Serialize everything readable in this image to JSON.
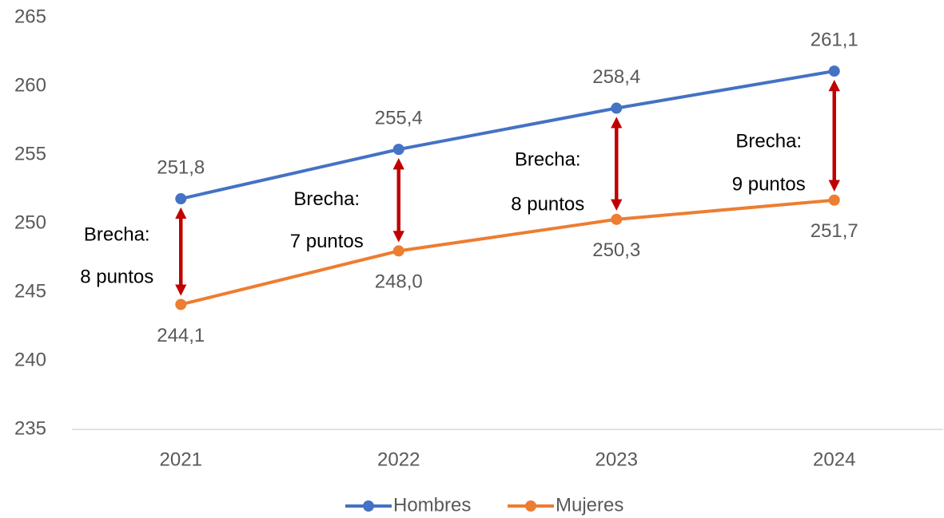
{
  "chart_data": {
    "type": "line",
    "categories": [
      "2021",
      "2022",
      "2023",
      "2024"
    ],
    "series": [
      {
        "name": "Hombres",
        "color": "#4472c4",
        "values": [
          251.8,
          255.4,
          258.4,
          261.1
        ],
        "value_labels": [
          "251,8",
          "255,4",
          "258,4",
          "261,1"
        ]
      },
      {
        "name": "Mujeres",
        "color": "#ed7d31",
        "values": [
          244.1,
          248.0,
          250.3,
          251.7
        ],
        "value_labels": [
          "244,1",
          "248,0",
          "250,3",
          "251,7"
        ]
      }
    ],
    "ylim": [
      235,
      265
    ],
    "yticks": [
      235,
      240,
      245,
      250,
      255,
      260,
      265
    ],
    "annotations": [
      {
        "line1": "Brecha:",
        "line2": "8 puntos"
      },
      {
        "line1": "Brecha:",
        "line2": "7 puntos"
      },
      {
        "line1": "Brecha:",
        "line2": "8 puntos"
      },
      {
        "line1": "Brecha:",
        "line2": "9 puntos"
      }
    ],
    "arrow_color": "#c00000",
    "legend": "bottom"
  }
}
